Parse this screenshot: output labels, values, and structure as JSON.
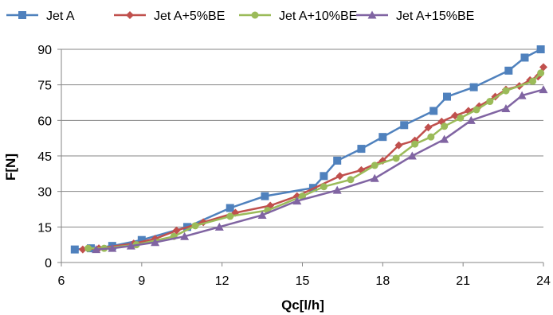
{
  "chart_data": {
    "type": "line",
    "xlabel": "Qc[l/h]",
    "ylabel": "F[N]",
    "xlim": [
      6,
      24
    ],
    "ylim": [
      0,
      90
    ],
    "xticks": [
      "6",
      "9",
      "12",
      "15",
      "18",
      "21",
      "24"
    ],
    "yticks": [
      "0",
      "15",
      "30",
      "45",
      "60",
      "75",
      "90"
    ],
    "grid": "horizontal",
    "legend_position": "top",
    "series": [
      {
        "name": "Jet A",
        "color": "#4F81BD",
        "marker": "square",
        "x": [
          6.5,
          7.1,
          7.9,
          9.0,
          10.7,
          12.3,
          13.6,
          15.4,
          15.8,
          16.3,
          17.2,
          18.0,
          18.8,
          19.9,
          20.4,
          21.4,
          22.7,
          23.3,
          23.9
        ],
        "y": [
          5.5,
          6.0,
          7.0,
          9.5,
          15.0,
          23.0,
          28.0,
          31.5,
          36.5,
          43.0,
          48.0,
          53.0,
          58.0,
          64.0,
          70.0,
          74.0,
          81.0,
          86.5,
          90.0
        ]
      },
      {
        "name": "Jet A+5%BE",
        "color": "#C0504D",
        "marker": "diamond",
        "x": [
          6.8,
          7.4,
          8.7,
          9.5,
          10.3,
          11.3,
          12.5,
          13.8,
          14.8,
          16.4,
          17.2,
          18.0,
          18.6,
          19.2,
          19.7,
          20.2,
          20.7,
          21.2,
          21.6,
          22.2,
          22.6,
          23.1,
          23.5,
          23.8,
          24.0
        ],
        "y": [
          5.5,
          6.0,
          8.0,
          10.0,
          13.5,
          17.0,
          21.0,
          24.0,
          28.0,
          36.5,
          39.0,
          43.0,
          49.5,
          51.5,
          57.0,
          59.5,
          62.0,
          64.0,
          66.0,
          70.0,
          73.0,
          74.5,
          77.0,
          78.5,
          82.5
        ]
      },
      {
        "name": "Jet A+10%BE",
        "color": "#9BBB59",
        "marker": "circle",
        "x": [
          7.0,
          7.6,
          8.8,
          10.2,
          11.0,
          12.3,
          13.7,
          15.0,
          15.8,
          16.8,
          17.7,
          18.5,
          19.2,
          19.8,
          20.3,
          20.9,
          21.5,
          22.0,
          22.6,
          23.6,
          23.9
        ],
        "y": [
          6.0,
          6.0,
          7.5,
          11.0,
          15.5,
          19.5,
          22.0,
          28.0,
          32.0,
          35.0,
          41.0,
          44.0,
          50.0,
          53.0,
          57.5,
          61.0,
          64.5,
          68.0,
          72.5,
          76.5,
          80.0
        ]
      },
      {
        "name": "Jet A+15%BE",
        "color": "#8064A2",
        "marker": "triangle",
        "x": [
          7.3,
          7.9,
          8.6,
          9.5,
          10.6,
          11.9,
          13.5,
          14.8,
          16.3,
          17.7,
          19.1,
          20.3,
          21.3,
          22.6,
          23.2,
          24.0
        ],
        "y": [
          5.5,
          6.0,
          7.0,
          8.5,
          11.0,
          15.0,
          20.0,
          26.0,
          30.5,
          35.5,
          45.0,
          52.0,
          60.0,
          65.0,
          70.5,
          73.0
        ]
      }
    ]
  }
}
